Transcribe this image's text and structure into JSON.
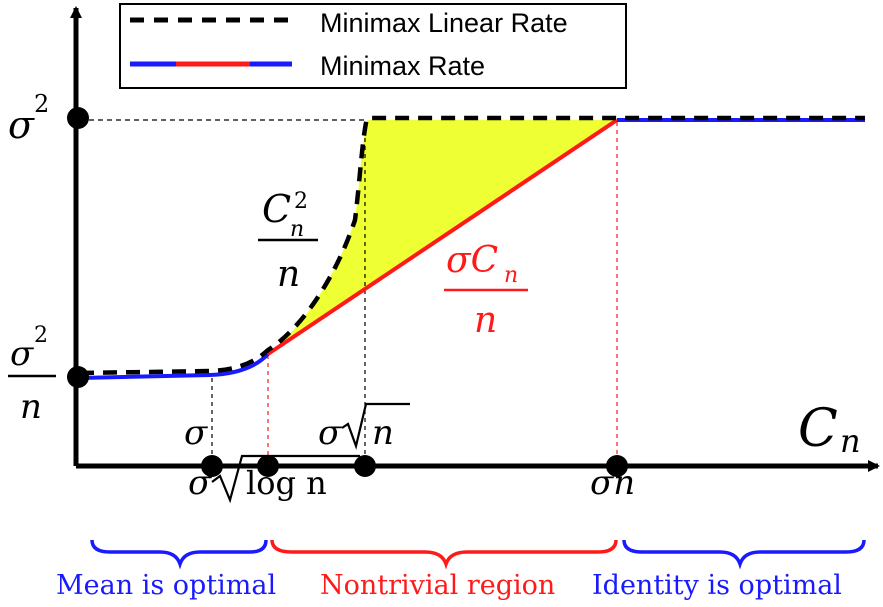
{
  "legend": {
    "items": [
      {
        "label": "Minimax Linear Rate",
        "color": "#000000",
        "style": "dashed"
      },
      {
        "label": "Minimax Rate",
        "colors": [
          "#1a1aff",
          "#ff1a1a",
          "#1a1aff"
        ],
        "style": "solid"
      }
    ]
  },
  "axis": {
    "x_label_base": "C",
    "x_label_sub": "n"
  },
  "y_ticks": {
    "sigma2": {
      "base": "σ",
      "sup": "2"
    },
    "sigma2_over_n": {
      "num_base": "σ",
      "num_sup": "2",
      "den": "n"
    }
  },
  "x_ticks": {
    "sigma": "σ",
    "sigma_sqrt_log_n": {
      "prefix": "σ",
      "radicand": "log n"
    },
    "sigma_sqrt_n": {
      "prefix": "σ",
      "radicand": "n"
    },
    "sigma_n": "σn"
  },
  "curve_labels": {
    "linear": {
      "num_base": "C",
      "num_sub": "n",
      "num_sup": "2",
      "den": "n"
    },
    "minimax": {
      "num": "σC",
      "num_sub": "n",
      "den": "n",
      "color": "#ff1a1a"
    }
  },
  "regions": [
    {
      "label": "Mean is optimal",
      "color": "#1a1aff"
    },
    {
      "label": "Nontrivial region",
      "color": "#ff1a1a"
    },
    {
      "label": "Identity is optimal",
      "color": "#1a1aff"
    }
  ],
  "colors": {
    "blue": "#1a1aff",
    "red": "#ff1a1a",
    "fill": "#eeff33",
    "axis": "#000000"
  }
}
